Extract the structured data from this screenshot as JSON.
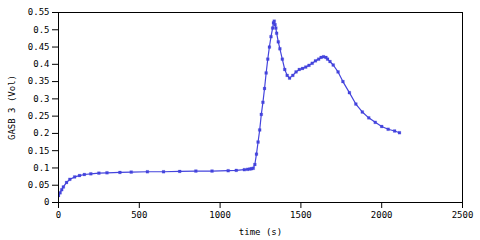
{
  "chart_data": {
    "type": "line",
    "xlabel": "time (s)",
    "ylabel": "GASB 3 (Vol)",
    "xlim": [
      0,
      2500
    ],
    "ylim": [
      0,
      0.55
    ],
    "xticks": [
      0,
      500,
      1000,
      1500,
      2000,
      2500
    ],
    "yticks": [
      0,
      0.05,
      0.1,
      0.15,
      0.2,
      0.25,
      0.3,
      0.35,
      0.4,
      0.45,
      0.5,
      0.55
    ],
    "color": "#4444dd",
    "marker": "square",
    "grid": false,
    "x": [
      0,
      10,
      20,
      30,
      50,
      70,
      100,
      130,
      160,
      200,
      250,
      300,
      380,
      450,
      550,
      650,
      750,
      850,
      950,
      1050,
      1100,
      1150,
      1170,
      1185,
      1195,
      1205,
      1215,
      1225,
      1235,
      1245,
      1255,
      1265,
      1275,
      1285,
      1295,
      1305,
      1315,
      1325,
      1330,
      1335,
      1340,
      1345,
      1350,
      1360,
      1370,
      1385,
      1400,
      1415,
      1430,
      1450,
      1470,
      1490,
      1510,
      1530,
      1550,
      1570,
      1590,
      1610,
      1625,
      1640,
      1655,
      1665,
      1680,
      1700,
      1730,
      1760,
      1800,
      1840,
      1880,
      1920,
      1960,
      2000,
      2040,
      2080,
      2110
    ],
    "values": [
      0.02,
      0.028,
      0.037,
      0.045,
      0.058,
      0.067,
      0.074,
      0.078,
      0.081,
      0.083,
      0.085,
      0.086,
      0.087,
      0.088,
      0.089,
      0.089,
      0.09,
      0.091,
      0.091,
      0.092,
      0.093,
      0.095,
      0.096,
      0.097,
      0.098,
      0.099,
      0.11,
      0.14,
      0.175,
      0.21,
      0.255,
      0.29,
      0.33,
      0.375,
      0.415,
      0.45,
      0.48,
      0.505,
      0.52,
      0.525,
      0.515,
      0.505,
      0.49,
      0.465,
      0.445,
      0.415,
      0.385,
      0.368,
      0.36,
      0.368,
      0.378,
      0.385,
      0.388,
      0.392,
      0.397,
      0.403,
      0.41,
      0.415,
      0.42,
      0.422,
      0.42,
      0.415,
      0.408,
      0.398,
      0.378,
      0.35,
      0.318,
      0.285,
      0.262,
      0.245,
      0.232,
      0.22,
      0.212,
      0.207,
      0.202
    ]
  }
}
